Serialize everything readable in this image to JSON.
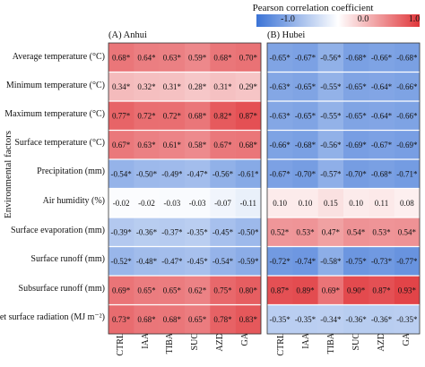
{
  "chart_data": {
    "type": "heatmap",
    "colorbar": {
      "title": "Pearson correlation coefficient",
      "min": -1.0,
      "max": 1.0,
      "ticks": [
        "-1.0",
        "0.0",
        "1.0"
      ],
      "low_color": "#3b73d6",
      "mid_color": "#ffffff",
      "high_color": "#e0363a"
    },
    "ylabel": "Environmental factors",
    "rows": [
      "Average temperature (°C)",
      "Minimum temperature (°C)",
      "Maximum temperature (°C)",
      "Surface temperature (°C)",
      "Precipitation (mm)",
      "Air humidity (%)",
      "Surface evaporation (mm)",
      "Surface runoff (mm)",
      "Subsurface runoff (mm)",
      "Net surface radiation (MJ m⁻²)"
    ],
    "columns": [
      "CTRL",
      "IAA",
      "TIBA",
      "SUC",
      "AZD",
      "GA"
    ],
    "panels": [
      {
        "title": "(A) Anhui",
        "values": [
          [
            "0.68*",
            "0.64*",
            "0.63*",
            "0.59*",
            "0.68*",
            "0.70*"
          ],
          [
            "0.34*",
            "0.32*",
            "0.31*",
            "0.28*",
            "0.31*",
            "0.29*"
          ],
          [
            "0.77*",
            "0.72*",
            "0.72*",
            "0.68*",
            "0.82*",
            "0.87*"
          ],
          [
            "0.67*",
            "0.63*",
            "0.61*",
            "0.58*",
            "0.67*",
            "0.68*"
          ],
          [
            "-0.54*",
            "-0.50*",
            "-0.49*",
            "-0.47*",
            "-0.56*",
            "-0.61*"
          ],
          [
            "-0.02",
            "-0.02",
            "-0.03",
            "-0.03",
            "-0.07",
            "-0.11"
          ],
          [
            "-0.39*",
            "-0.36*",
            "-0.37*",
            "-0.35*",
            "-0.45*",
            "-0.50*"
          ],
          [
            "-0.52*",
            "-0.48*",
            "-0.47*",
            "-0.45*",
            "-0.54*",
            "-0.59*"
          ],
          [
            "0.69*",
            "0.65*",
            "0.65*",
            "0.62*",
            "0.75*",
            "0.80*"
          ],
          [
            "0.73*",
            "0.68*",
            "0.68*",
            "0.65*",
            "0.78*",
            "0.83*"
          ]
        ]
      },
      {
        "title": "(B) Hubei",
        "values": [
          [
            "-0.65*",
            "-0.67*",
            "-0.56*",
            "-0.68*",
            "-0.66*",
            "-0.68*"
          ],
          [
            "-0.63*",
            "-0.65*",
            "-0.55*",
            "-0.65*",
            "-0.64*",
            "-0.66*"
          ],
          [
            "-0.63*",
            "-0.65*",
            "-0.55*",
            "-0.65*",
            "-0.64*",
            "-0.66*"
          ],
          [
            "-0.66*",
            "-0.68*",
            "-0.56*",
            "-0.69*",
            "-0.67*",
            "-0.69*"
          ],
          [
            "-0.67*",
            "-0.70*",
            "-0.57*",
            "-0.70*",
            "-0.68*",
            "-0.71*"
          ],
          [
            "0.10",
            "0.10",
            "0.15",
            "0.10",
            "0.11",
            "0.08"
          ],
          [
            "0.52*",
            "0.53*",
            "0.47*",
            "0.54*",
            "0.53*",
            "0.54*"
          ],
          [
            "-0.72*",
            "-0.74*",
            "-0.58*",
            "-0.75*",
            "-0.73*",
            "-0.77*"
          ],
          [
            "0.87*",
            "0.89*",
            "0.69*",
            "0.90*",
            "0.87*",
            "0.93*"
          ],
          [
            "-0.35*",
            "-0.35*",
            "-0.34*",
            "-0.36*",
            "-0.36*",
            "-0.35*"
          ]
        ]
      }
    ]
  }
}
